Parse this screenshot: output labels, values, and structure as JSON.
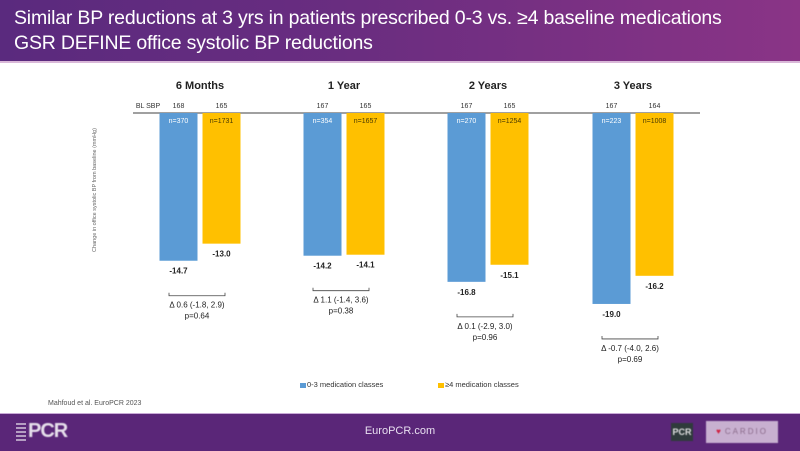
{
  "header": {
    "title_line1": "Similar BP reductions at 3 yrs in patients prescribed 0-3 vs. ≥4 baseline medications",
    "title_line2": "GSR DEFINE office systolic BP reductions"
  },
  "colors": {
    "series_low": "#5b9bd5",
    "series_high": "#ffc000",
    "header_left": "#5a2a7e",
    "header_right": "#8a3486",
    "footer": "#5a2678"
  },
  "chart_data": {
    "type": "bar",
    "title": "GSR DEFINE office systolic BP reductions",
    "ylabel": "Change in office systolic BP from baseline (mmHg)",
    "xlabel": "",
    "ylim": [
      -20,
      0
    ],
    "grid": false,
    "legend_position": "bottom-center",
    "baseline_row_label": "BL SBP",
    "categories": [
      "6 Months",
      "1 Year",
      "2 Years",
      "3 Years"
    ],
    "series": [
      {
        "name": "0-3 medication classes",
        "values": [
          -14.7,
          -14.2,
          -16.8,
          -19.0
        ],
        "value_labels": [
          "-14.7",
          "-14.2",
          "-16.8",
          "-19.0"
        ],
        "n": [
          "n=370",
          "n=354",
          "n=270",
          "n=223"
        ],
        "baseline_sbp": [
          "168",
          "167",
          "167",
          "167"
        ]
      },
      {
        "name": "≥4 medication classes",
        "values": [
          -13.0,
          -14.1,
          -15.1,
          -16.2
        ],
        "value_labels": [
          "-13.0",
          "-14.1",
          "-15.1",
          "-16.2"
        ],
        "n": [
          "n=1731",
          "n=1657",
          "n=1254",
          "n=1008"
        ],
        "baseline_sbp": [
          "165",
          "165",
          "165",
          "164"
        ]
      }
    ],
    "annotations": [
      {
        "delta": "Δ 0.6 (-1.8, 2.9)",
        "p": "p=0.64"
      },
      {
        "delta": "Δ 1.1 (-1.4, 3.6)",
        "p": "p=0.38"
      },
      {
        "delta": "Δ 0.1 (-2.9, 3.0)",
        "p": "p=0.96"
      },
      {
        "delta": "Δ -0.7 (-4.0, 2.6)",
        "p": "p=0.69"
      }
    ]
  },
  "source": "Mahfoud et al. EuroPCR 2023",
  "footer": {
    "logo_left": "PCR",
    "site": "EuroPCR.com",
    "logo_pcr": "PCR",
    "logo_cardio": "CARDIO"
  }
}
